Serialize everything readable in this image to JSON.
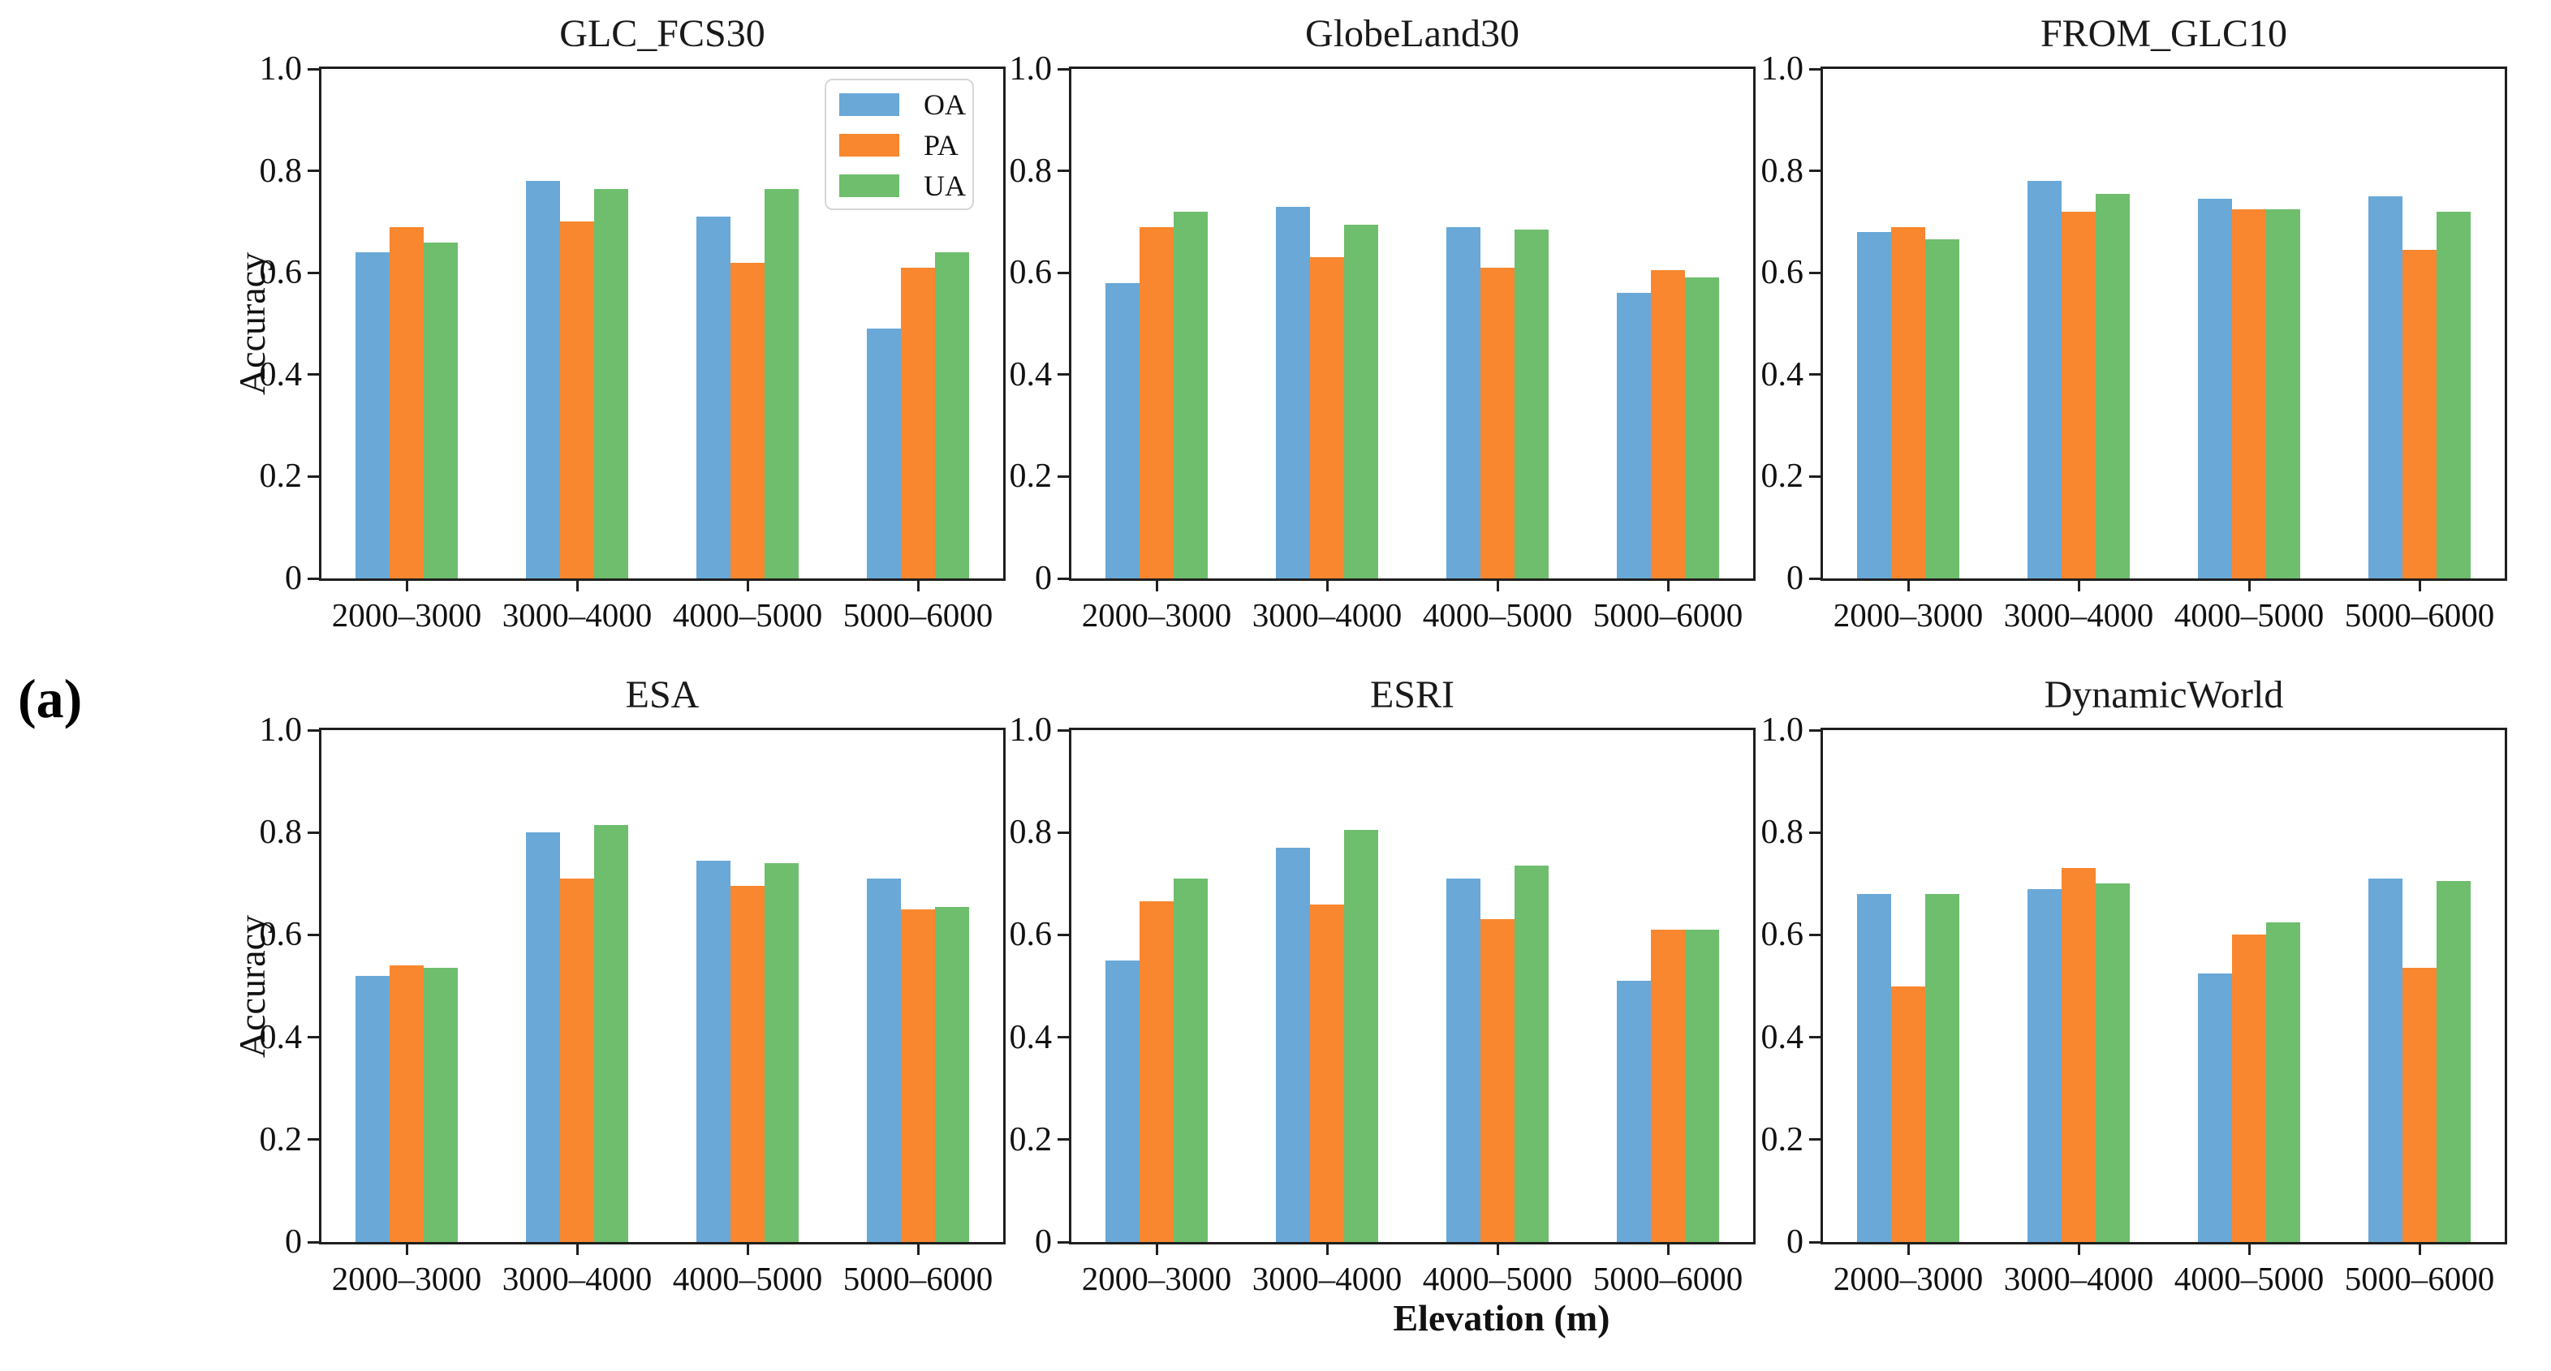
{
  "figure_label": "(a)",
  "axes": {
    "ylabel": "Accuracy",
    "xlabel": "Elevation (m)",
    "ylim": [
      0,
      1
    ],
    "yticks": [
      0,
      0.2,
      0.4,
      0.6,
      0.8,
      1.0
    ],
    "ytick_labels": [
      "0",
      "0.2",
      "0.4",
      "0.6",
      "0.8",
      "1.0"
    ],
    "grid": false,
    "legend_position": "upper-right of first panel"
  },
  "colors": {
    "OA": "#69a8d7",
    "PA": "#f8872f",
    "UA": "#6ebe6d"
  },
  "legend": {
    "items": [
      {
        "label": "OA",
        "color": "#69a8d7"
      },
      {
        "label": "PA",
        "color": "#f8872f"
      },
      {
        "label": "UA",
        "color": "#6ebe6d"
      }
    ]
  },
  "chart_data": [
    {
      "type": "bar",
      "title": "GLC_FCS30",
      "categories": [
        "2000–3000",
        "3000–4000",
        "4000–5000",
        "5000–6000"
      ],
      "series": [
        {
          "name": "OA",
          "values": [
            0.64,
            0.78,
            0.71,
            0.49
          ]
        },
        {
          "name": "PA",
          "values": [
            0.69,
            0.7,
            0.62,
            0.61
          ]
        },
        {
          "name": "UA",
          "values": [
            0.66,
            0.765,
            0.765,
            0.64
          ]
        }
      ],
      "ylim": [
        0,
        1
      ],
      "show_legend": true,
      "show_ylabel": true
    },
    {
      "type": "bar",
      "title": "GlobeLand30",
      "categories": [
        "2000–3000",
        "3000–4000",
        "4000–5000",
        "5000–6000"
      ],
      "series": [
        {
          "name": "OA",
          "values": [
            0.58,
            0.73,
            0.69,
            0.56
          ]
        },
        {
          "name": "PA",
          "values": [
            0.69,
            0.63,
            0.61,
            0.605
          ]
        },
        {
          "name": "UA",
          "values": [
            0.72,
            0.695,
            0.685,
            0.59
          ]
        }
      ],
      "ylim": [
        0,
        1
      ],
      "show_legend": false,
      "show_ylabel": false
    },
    {
      "type": "bar",
      "title": "FROM_GLC10",
      "categories": [
        "2000–3000",
        "3000–4000",
        "4000–5000",
        "5000–6000"
      ],
      "series": [
        {
          "name": "OA",
          "values": [
            0.68,
            0.78,
            0.745,
            0.75
          ]
        },
        {
          "name": "PA",
          "values": [
            0.69,
            0.72,
            0.725,
            0.645
          ]
        },
        {
          "name": "UA",
          "values": [
            0.665,
            0.755,
            0.725,
            0.72
          ]
        }
      ],
      "ylim": [
        0,
        1
      ],
      "show_legend": false,
      "show_ylabel": false
    },
    {
      "type": "bar",
      "title": "ESA",
      "categories": [
        "2000–3000",
        "3000–4000",
        "4000–5000",
        "5000–6000"
      ],
      "series": [
        {
          "name": "OA",
          "values": [
            0.52,
            0.8,
            0.745,
            0.71
          ]
        },
        {
          "name": "PA",
          "values": [
            0.54,
            0.71,
            0.695,
            0.65
          ]
        },
        {
          "name": "UA",
          "values": [
            0.535,
            0.815,
            0.74,
            0.655
          ]
        }
      ],
      "ylim": [
        0,
        1
      ],
      "show_legend": false,
      "show_ylabel": true
    },
    {
      "type": "bar",
      "title": "ESRI",
      "categories": [
        "2000–3000",
        "3000–4000",
        "4000–5000",
        "5000–6000"
      ],
      "series": [
        {
          "name": "OA",
          "values": [
            0.55,
            0.77,
            0.71,
            0.51
          ]
        },
        {
          "name": "PA",
          "values": [
            0.665,
            0.66,
            0.63,
            0.61
          ]
        },
        {
          "name": "UA",
          "values": [
            0.71,
            0.805,
            0.735,
            0.61
          ]
        }
      ],
      "ylim": [
        0,
        1
      ],
      "show_legend": false,
      "show_ylabel": false
    },
    {
      "type": "bar",
      "title": "DynamicWorld",
      "categories": [
        "2000–3000",
        "3000–4000",
        "4000–5000",
        "5000–6000"
      ],
      "series": [
        {
          "name": "OA",
          "values": [
            0.68,
            0.69,
            0.525,
            0.71
          ]
        },
        {
          "name": "PA",
          "values": [
            0.5,
            0.73,
            0.6,
            0.535
          ]
        },
        {
          "name": "UA",
          "values": [
            0.68,
            0.7,
            0.625,
            0.705
          ]
        }
      ],
      "ylim": [
        0,
        1
      ],
      "show_legend": false,
      "show_ylabel": false
    }
  ]
}
